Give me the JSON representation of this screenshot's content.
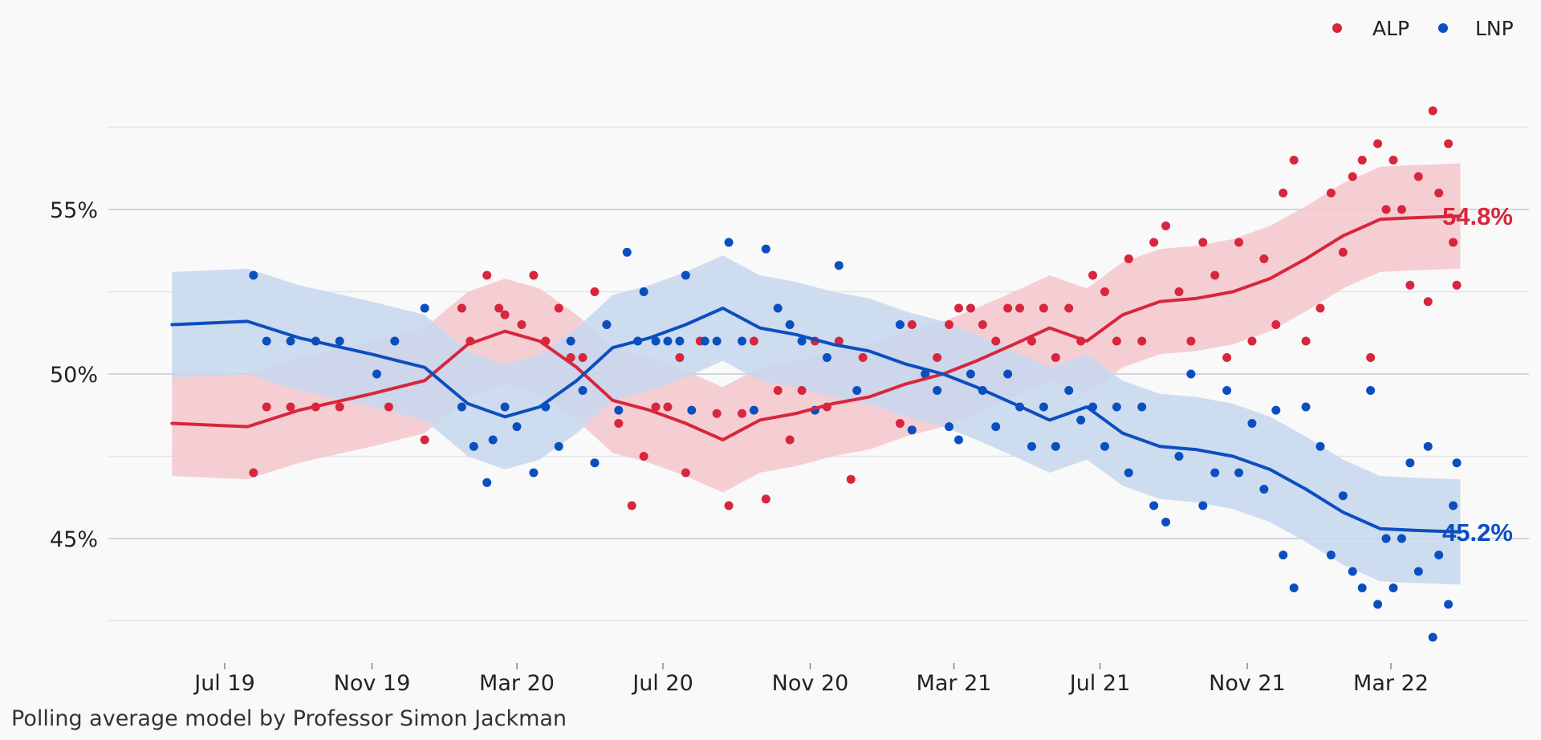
{
  "chart_data": {
    "type": "line",
    "title": "",
    "xlabel": "",
    "ylabel": "",
    "x_ticks": [
      "Jul 19",
      "Nov 19",
      "Mar 20",
      "Jul 20",
      "Nov 20",
      "Mar 21",
      "Jul 21",
      "Nov 21",
      "Mar 22"
    ],
    "y_ticks": [
      "45%",
      "50%",
      "55%"
    ],
    "ylim": [
      42.5,
      57.5
    ],
    "xlim": [
      "2019-04-01",
      "2022-06-01"
    ],
    "grid": true,
    "legend": "top-right",
    "series": [
      {
        "name": "ALP",
        "color": "#d7263d",
        "band_color": "#f4c7cc",
        "end_label": "54.8%",
        "line": [
          [
            "2019-05-18",
            48.5
          ],
          [
            "2019-07-20",
            48.4
          ],
          [
            "2019-09-01",
            48.9
          ],
          [
            "2019-11-01",
            49.4
          ],
          [
            "2019-12-15",
            49.8
          ],
          [
            "2020-01-20",
            50.9
          ],
          [
            "2020-02-20",
            51.3
          ],
          [
            "2020-03-20",
            51.0
          ],
          [
            "2020-04-20",
            50.2
          ],
          [
            "2020-05-20",
            49.2
          ],
          [
            "2020-06-20",
            48.9
          ],
          [
            "2020-07-20",
            48.5
          ],
          [
            "2020-08-20",
            48.0
          ],
          [
            "2020-09-20",
            48.6
          ],
          [
            "2020-10-20",
            48.8
          ],
          [
            "2020-11-20",
            49.1
          ],
          [
            "2020-12-20",
            49.3
          ],
          [
            "2021-01-20",
            49.7
          ],
          [
            "2021-02-20",
            50.0
          ],
          [
            "2021-03-20",
            50.4
          ],
          [
            "2021-04-20",
            50.9
          ],
          [
            "2021-05-20",
            51.4
          ],
          [
            "2021-06-20",
            51.0
          ],
          [
            "2021-07-20",
            51.8
          ],
          [
            "2021-08-20",
            52.2
          ],
          [
            "2021-09-20",
            52.3
          ],
          [
            "2021-10-20",
            52.5
          ],
          [
            "2021-11-20",
            52.9
          ],
          [
            "2021-12-20",
            53.5
          ],
          [
            "2022-01-20",
            54.2
          ],
          [
            "2022-02-20",
            54.7
          ],
          [
            "2022-03-20",
            54.75
          ],
          [
            "2022-04-28",
            54.8
          ]
        ],
        "points": [
          [
            "2019-07-25",
            47.0
          ],
          [
            "2019-08-05",
            49.0
          ],
          [
            "2019-08-25",
            49.0
          ],
          [
            "2019-09-15",
            49.0
          ],
          [
            "2019-10-05",
            49.0
          ],
          [
            "2019-11-15",
            49.0
          ],
          [
            "2019-12-15",
            48.0
          ],
          [
            "2020-01-15",
            52.0
          ],
          [
            "2020-01-22",
            51.0
          ],
          [
            "2020-02-05",
            53.0
          ],
          [
            "2020-02-15",
            52.0
          ],
          [
            "2020-02-20",
            51.8
          ],
          [
            "2020-03-05",
            51.5
          ],
          [
            "2020-03-15",
            53.0
          ],
          [
            "2020-03-25",
            51.0
          ],
          [
            "2020-04-05",
            52.0
          ],
          [
            "2020-04-15",
            50.5
          ],
          [
            "2020-04-25",
            50.5
          ],
          [
            "2020-05-05",
            52.5
          ],
          [
            "2020-05-15",
            51.5
          ],
          [
            "2020-05-25",
            48.5
          ],
          [
            "2020-06-05",
            46.0
          ],
          [
            "2020-06-15",
            47.5
          ],
          [
            "2020-06-25",
            49.0
          ],
          [
            "2020-07-05",
            49.0
          ],
          [
            "2020-07-15",
            50.5
          ],
          [
            "2020-07-20",
            47.0
          ],
          [
            "2020-08-01",
            51.0
          ],
          [
            "2020-08-15",
            48.8
          ],
          [
            "2020-08-25",
            46.0
          ],
          [
            "2020-09-05",
            48.8
          ],
          [
            "2020-09-15",
            51.0
          ],
          [
            "2020-09-25",
            46.2
          ],
          [
            "2020-10-05",
            49.5
          ],
          [
            "2020-10-15",
            48.0
          ],
          [
            "2020-10-25",
            49.5
          ],
          [
            "2020-11-05",
            51.0
          ],
          [
            "2020-11-15",
            49.0
          ],
          [
            "2020-11-25",
            51.0
          ],
          [
            "2020-12-05",
            46.8
          ],
          [
            "2020-12-15",
            50.5
          ],
          [
            "2021-01-15",
            48.5
          ],
          [
            "2021-01-25",
            51.5
          ],
          [
            "2021-02-05",
            50.0
          ],
          [
            "2021-02-15",
            50.5
          ],
          [
            "2021-02-25",
            51.5
          ],
          [
            "2021-03-05",
            52.0
          ],
          [
            "2021-03-15",
            52.0
          ],
          [
            "2021-03-25",
            51.5
          ],
          [
            "2021-04-05",
            51.0
          ],
          [
            "2021-04-15",
            52.0
          ],
          [
            "2021-04-25",
            52.0
          ],
          [
            "2021-05-05",
            51.0
          ],
          [
            "2021-05-15",
            52.0
          ],
          [
            "2021-05-25",
            50.5
          ],
          [
            "2021-06-05",
            52.0
          ],
          [
            "2021-06-15",
            51.0
          ],
          [
            "2021-06-25",
            53.0
          ],
          [
            "2021-07-05",
            52.5
          ],
          [
            "2021-07-15",
            51.0
          ],
          [
            "2021-07-25",
            53.5
          ],
          [
            "2021-08-05",
            51.0
          ],
          [
            "2021-08-15",
            54.0
          ],
          [
            "2021-08-25",
            54.5
          ],
          [
            "2021-09-05",
            52.5
          ],
          [
            "2021-09-15",
            51.0
          ],
          [
            "2021-09-25",
            54.0
          ],
          [
            "2021-10-05",
            53.0
          ],
          [
            "2021-10-15",
            50.5
          ],
          [
            "2021-10-25",
            54.0
          ],
          [
            "2021-11-05",
            51.0
          ],
          [
            "2021-11-15",
            53.5
          ],
          [
            "2021-11-25",
            51.5
          ],
          [
            "2021-12-01",
            55.5
          ],
          [
            "2021-12-10",
            56.5
          ],
          [
            "2021-12-20",
            51.0
          ],
          [
            "2022-01-01",
            52.0
          ],
          [
            "2022-01-10",
            55.5
          ],
          [
            "2022-01-20",
            53.7
          ],
          [
            "2022-01-28",
            56.0
          ],
          [
            "2022-02-05",
            56.5
          ],
          [
            "2022-02-12",
            50.5
          ],
          [
            "2022-02-18",
            57.0
          ],
          [
            "2022-02-25",
            55.0
          ],
          [
            "2022-03-03",
            56.5
          ],
          [
            "2022-03-10",
            55.0
          ],
          [
            "2022-03-17",
            52.7
          ],
          [
            "2022-03-24",
            56.0
          ],
          [
            "2022-04-01",
            52.2
          ],
          [
            "2022-04-05",
            58.0
          ],
          [
            "2022-04-10",
            55.5
          ],
          [
            "2022-04-18",
            57.0
          ],
          [
            "2022-04-22",
            54.0
          ],
          [
            "2022-04-25",
            52.7
          ]
        ]
      },
      {
        "name": "LNP",
        "color": "#0b4fbf",
        "band_color": "#c7d7ee",
        "end_label": "45.2%",
        "line": [
          [
            "2019-05-18",
            51.5
          ],
          [
            "2019-07-20",
            51.6
          ],
          [
            "2019-09-01",
            51.1
          ],
          [
            "2019-11-01",
            50.6
          ],
          [
            "2019-12-15",
            50.2
          ],
          [
            "2020-01-20",
            49.1
          ],
          [
            "2020-02-20",
            48.7
          ],
          [
            "2020-03-20",
            49.0
          ],
          [
            "2020-04-20",
            49.8
          ],
          [
            "2020-05-20",
            50.8
          ],
          [
            "2020-06-20",
            51.1
          ],
          [
            "2020-07-20",
            51.5
          ],
          [
            "2020-08-20",
            52.0
          ],
          [
            "2020-09-20",
            51.4
          ],
          [
            "2020-10-20",
            51.2
          ],
          [
            "2020-11-20",
            50.9
          ],
          [
            "2020-12-20",
            50.7
          ],
          [
            "2021-01-20",
            50.3
          ],
          [
            "2021-02-20",
            50.0
          ],
          [
            "2021-03-20",
            49.6
          ],
          [
            "2021-04-20",
            49.1
          ],
          [
            "2021-05-20",
            48.6
          ],
          [
            "2021-06-20",
            49.0
          ],
          [
            "2021-07-20",
            48.2
          ],
          [
            "2021-08-20",
            47.8
          ],
          [
            "2021-09-20",
            47.7
          ],
          [
            "2021-10-20",
            47.5
          ],
          [
            "2021-11-20",
            47.1
          ],
          [
            "2021-12-20",
            46.5
          ],
          [
            "2022-01-20",
            45.8
          ],
          [
            "2022-02-20",
            45.3
          ],
          [
            "2022-03-20",
            45.25
          ],
          [
            "2022-04-28",
            45.2
          ]
        ],
        "points": [
          [
            "2019-07-25",
            53.0
          ],
          [
            "2019-08-05",
            51.0
          ],
          [
            "2019-08-25",
            51.0
          ],
          [
            "2019-09-15",
            51.0
          ],
          [
            "2019-10-05",
            51.0
          ],
          [
            "2019-11-05",
            50.0
          ],
          [
            "2019-11-20",
            51.0
          ],
          [
            "2019-12-15",
            52.0
          ],
          [
            "2020-01-15",
            49.0
          ],
          [
            "2020-01-25",
            47.8
          ],
          [
            "2020-02-05",
            46.7
          ],
          [
            "2020-02-10",
            48.0
          ],
          [
            "2020-02-20",
            49.0
          ],
          [
            "2020-03-01",
            48.4
          ],
          [
            "2020-03-15",
            47.0
          ],
          [
            "2020-03-25",
            49.0
          ],
          [
            "2020-04-05",
            47.8
          ],
          [
            "2020-04-15",
            51.0
          ],
          [
            "2020-04-25",
            49.5
          ],
          [
            "2020-05-05",
            47.3
          ],
          [
            "2020-05-15",
            51.5
          ],
          [
            "2020-05-25",
            48.9
          ],
          [
            "2020-06-01",
            53.7
          ],
          [
            "2020-06-10",
            51.0
          ],
          [
            "2020-06-15",
            52.5
          ],
          [
            "2020-06-25",
            51.0
          ],
          [
            "2020-07-05",
            51.0
          ],
          [
            "2020-07-15",
            51.0
          ],
          [
            "2020-07-20",
            53.0
          ],
          [
            "2020-07-25",
            48.9
          ],
          [
            "2020-08-05",
            51.0
          ],
          [
            "2020-08-15",
            51.0
          ],
          [
            "2020-08-25",
            54.0
          ],
          [
            "2020-09-05",
            51.0
          ],
          [
            "2020-09-15",
            48.9
          ],
          [
            "2020-09-25",
            53.8
          ],
          [
            "2020-10-05",
            52.0
          ],
          [
            "2020-10-15",
            51.5
          ],
          [
            "2020-10-25",
            51.0
          ],
          [
            "2020-11-05",
            48.9
          ],
          [
            "2020-11-15",
            50.5
          ],
          [
            "2020-11-25",
            53.3
          ],
          [
            "2020-12-10",
            49.5
          ],
          [
            "2021-01-15",
            51.5
          ],
          [
            "2021-01-25",
            48.3
          ],
          [
            "2021-02-05",
            50.0
          ],
          [
            "2021-02-15",
            49.5
          ],
          [
            "2021-02-25",
            48.4
          ],
          [
            "2021-03-05",
            48.0
          ],
          [
            "2021-03-15",
            50.0
          ],
          [
            "2021-03-25",
            49.5
          ],
          [
            "2021-04-05",
            48.4
          ],
          [
            "2021-04-15",
            50.0
          ],
          [
            "2021-04-25",
            49.0
          ],
          [
            "2021-05-05",
            47.8
          ],
          [
            "2021-05-15",
            49.0
          ],
          [
            "2021-05-25",
            47.8
          ],
          [
            "2021-06-05",
            49.5
          ],
          [
            "2021-06-15",
            48.6
          ],
          [
            "2021-06-25",
            49.0
          ],
          [
            "2021-07-05",
            47.8
          ],
          [
            "2021-07-15",
            49.0
          ],
          [
            "2021-07-25",
            47.0
          ],
          [
            "2021-08-05",
            49.0
          ],
          [
            "2021-08-15",
            46.0
          ],
          [
            "2021-08-25",
            45.5
          ],
          [
            "2021-09-05",
            47.5
          ],
          [
            "2021-09-15",
            50.0
          ],
          [
            "2021-09-25",
            46.0
          ],
          [
            "2021-10-05",
            47.0
          ],
          [
            "2021-10-15",
            49.5
          ],
          [
            "2021-10-25",
            47.0
          ],
          [
            "2021-11-05",
            48.5
          ],
          [
            "2021-11-15",
            46.5
          ],
          [
            "2021-11-25",
            48.9
          ],
          [
            "2021-12-01",
            44.5
          ],
          [
            "2021-12-10",
            43.5
          ],
          [
            "2021-12-20",
            49.0
          ],
          [
            "2022-01-01",
            47.8
          ],
          [
            "2022-01-10",
            44.5
          ],
          [
            "2022-01-20",
            46.3
          ],
          [
            "2022-01-28",
            44.0
          ],
          [
            "2022-02-05",
            43.5
          ],
          [
            "2022-02-12",
            49.5
          ],
          [
            "2022-02-18",
            43.0
          ],
          [
            "2022-02-25",
            45.0
          ],
          [
            "2022-03-03",
            43.5
          ],
          [
            "2022-03-10",
            45.0
          ],
          [
            "2022-03-17",
            47.3
          ],
          [
            "2022-03-24",
            44.0
          ],
          [
            "2022-04-01",
            47.8
          ],
          [
            "2022-04-05",
            42.0
          ],
          [
            "2022-04-10",
            44.5
          ],
          [
            "2022-04-18",
            43.0
          ],
          [
            "2022-04-22",
            46.0
          ],
          [
            "2022-04-25",
            47.3
          ]
        ]
      }
    ]
  },
  "credit": "Polling average model by Professor Simon Jackman"
}
